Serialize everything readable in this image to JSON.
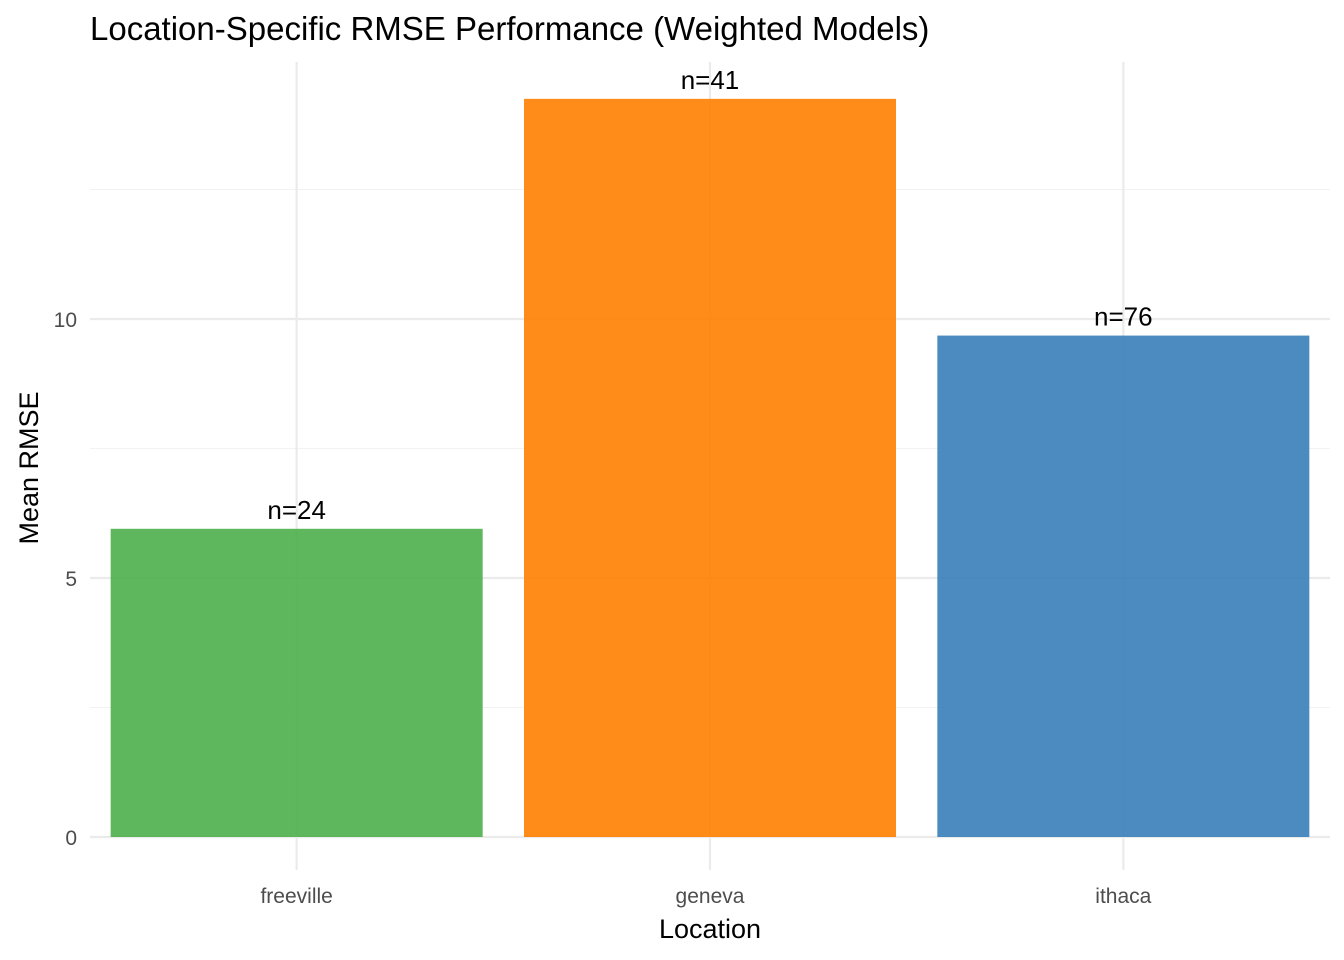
{
  "chart_data": {
    "type": "bar",
    "title": "Location-Specific RMSE Performance (Weighted Models)",
    "xlabel": "Location",
    "ylabel": "Mean RMSE",
    "categories": [
      "freeville",
      "geneva",
      "ithaca"
    ],
    "values": [
      5.95,
      14.25,
      9.68
    ],
    "bar_labels": [
      "n=24",
      "n=41",
      "n=76"
    ],
    "colors": [
      "#4daf4a",
      "#ff7f00",
      "#377eb8"
    ],
    "ylim": [
      0,
      15
    ],
    "yticks": [
      0,
      5,
      10
    ],
    "yticks_minor": [
      2.5,
      7.5,
      12.5
    ],
    "ytick_labels": [
      "0",
      "5",
      "10"
    ],
    "grid": true,
    "legend": "none"
  }
}
